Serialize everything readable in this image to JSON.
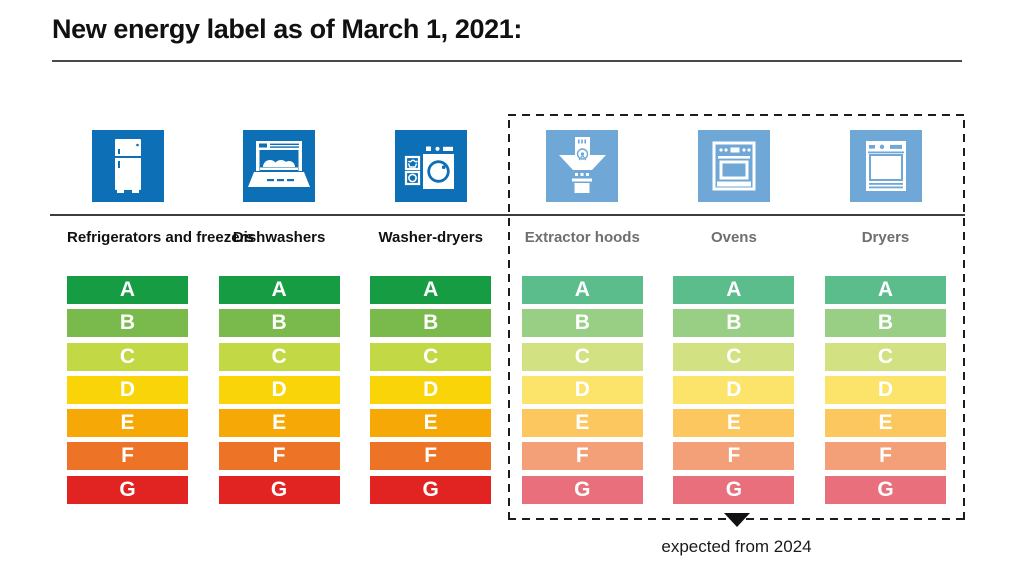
{
  "title": "New energy label as of March 1, 2021:",
  "footnote": "expected from 2024",
  "ratings": [
    "A",
    "B",
    "C",
    "D",
    "E",
    "F",
    "G"
  ],
  "palette": {
    "vivid_tile": "#0d6fb5",
    "muted_tile": "#6fa7d6",
    "vivid_bars": [
      "#169c43",
      "#7ab94c",
      "#c2d844",
      "#f8d408",
      "#f6a806",
      "#ed7326",
      "#e12421"
    ],
    "muted_bars": [
      "#5bbd8c",
      "#99cf84",
      "#d2e283",
      "#fbe469",
      "#fbc75e",
      "#f3a078",
      "#e86f7b"
    ],
    "label_black": "#111111",
    "label_gray": "#6f6f6f"
  },
  "categories": [
    {
      "label": "Refrigerators and freezers",
      "icon": "refrigerator-icon",
      "group": "current"
    },
    {
      "label": "Dishwashers",
      "icon": "dishwasher-icon",
      "group": "current"
    },
    {
      "label": "Washer-dryers",
      "icon": "washer-dryer-icon",
      "group": "current"
    },
    {
      "label": "Extractor hoods",
      "icon": "extractor-hood-icon",
      "group": "expected"
    },
    {
      "label": "Ovens",
      "icon": "oven-icon",
      "group": "expected"
    },
    {
      "label": "Dryers",
      "icon": "dryer-icon",
      "group": "expected"
    }
  ]
}
